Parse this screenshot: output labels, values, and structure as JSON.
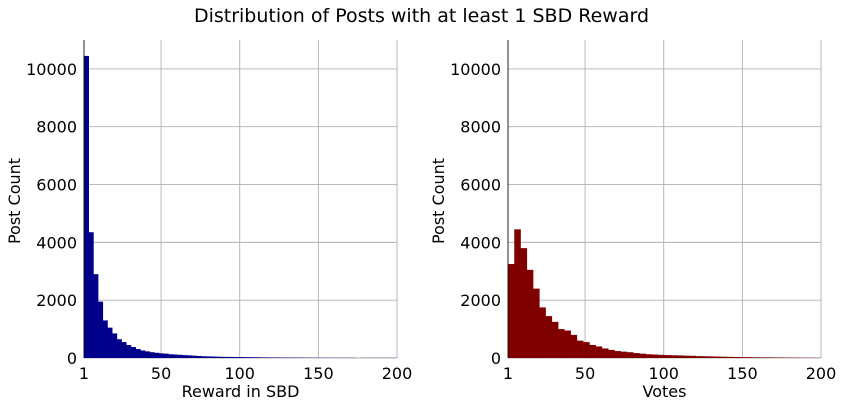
{
  "title": "Distribution of Posts with at least 1 SBD Reward",
  "chart_data": [
    {
      "type": "bar",
      "subtype": "histogram",
      "color": "#00008b",
      "xlabel": "Reward in SBD",
      "ylabel": "Post Count",
      "xlim": [
        1,
        200
      ],
      "ylim": [
        0,
        11000
      ],
      "xticks": [
        "1",
        "50",
        "100",
        "150",
        "200"
      ],
      "xtick_values": [
        1,
        50,
        100,
        150,
        200
      ],
      "yticks": [
        "0",
        "2000",
        "4000",
        "6000",
        "8000",
        "10000"
      ],
      "ytick_values": [
        0,
        2000,
        4000,
        6000,
        8000,
        10000
      ],
      "grid": true,
      "bin_edges": [
        1,
        3.985,
        6.97,
        9.955,
        12.94,
        15.925,
        18.91,
        21.895,
        24.88,
        27.865,
        30.85,
        33.835,
        36.82,
        39.805,
        42.79,
        45.775,
        48.76,
        51.745,
        54.73,
        57.715,
        60.7,
        63.685,
        66.67,
        69.655,
        72.64,
        75.625,
        78.61,
        81.595,
        84.58,
        87.565,
        90.55,
        93.535,
        96.52,
        99.505,
        102.49,
        105.475,
        108.46,
        111.445,
        114.43,
        117.415,
        120.4,
        123.385,
        126.37,
        129.355,
        132.34,
        135.325,
        138.31,
        141.295,
        144.28,
        147.265,
        150.25,
        153.235,
        156.22,
        159.205,
        162.19,
        165.175,
        168.16,
        171.145,
        174.13,
        177.115,
        180.1,
        183.085,
        186.07,
        189.055,
        192.04,
        195.025,
        198.01,
        200
      ],
      "counts": [
        10450,
        4350,
        2900,
        1950,
        1300,
        1050,
        850,
        650,
        550,
        450,
        380,
        310,
        260,
        230,
        200,
        180,
        160,
        150,
        130,
        120,
        110,
        100,
        90,
        80,
        70,
        60,
        55,
        50,
        45,
        40,
        38,
        36,
        34,
        32,
        30,
        28,
        26,
        24,
        22,
        20,
        19,
        18,
        17,
        16,
        15,
        14,
        13,
        12,
        11,
        10,
        9,
        9,
        8,
        8,
        7,
        7,
        7,
        6,
        0,
        5,
        5,
        5,
        5,
        5,
        5,
        5,
        5
      ]
    },
    {
      "type": "bar",
      "subtype": "histogram",
      "color": "#800000",
      "xlabel": "Votes",
      "ylabel": "Post Count",
      "xlim": [
        1,
        200
      ],
      "ylim": [
        0,
        11000
      ],
      "xticks": [
        "1",
        "50",
        "100",
        "150",
        "200"
      ],
      "xtick_values": [
        1,
        50,
        100,
        150,
        200
      ],
      "yticks": [
        "0",
        "2000",
        "4000",
        "6000",
        "8000",
        "10000"
      ],
      "ytick_values": [
        0,
        2000,
        4000,
        6000,
        8000,
        10000
      ],
      "grid": true,
      "bin_edges": [
        1,
        4.98,
        8.96,
        12.94,
        16.92,
        20.9,
        24.88,
        28.86,
        32.84,
        36.82,
        40.8,
        44.78,
        48.76,
        52.74,
        56.72,
        60.7,
        64.68,
        68.66,
        72.64,
        76.62,
        80.6,
        84.58,
        88.56,
        92.54,
        96.52,
        100.5,
        104.48,
        108.46,
        112.44,
        116.42,
        120.4,
        124.38,
        128.36,
        132.34,
        136.32,
        140.3,
        144.28,
        148.26,
        152.24,
        156.22,
        160.2,
        164.18,
        168.16,
        172.14,
        176.12,
        180.1,
        184.08,
        188.06,
        192.04,
        196.02,
        200
      ],
      "counts": [
        3250,
        4450,
        3800,
        3050,
        2400,
        1750,
        1450,
        1250,
        1000,
        950,
        800,
        600,
        550,
        450,
        400,
        330,
        280,
        240,
        220,
        200,
        170,
        150,
        130,
        120,
        110,
        100,
        95,
        90,
        80,
        75,
        65,
        60,
        55,
        50,
        45,
        40,
        35,
        30,
        28,
        26,
        24,
        22,
        20,
        18,
        16,
        14,
        12,
        10,
        8,
        6
      ]
    }
  ]
}
